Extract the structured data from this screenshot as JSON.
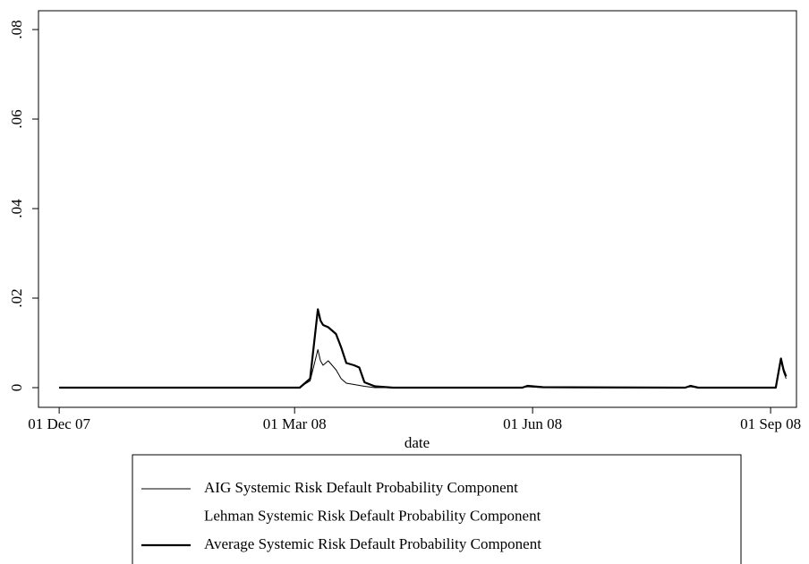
{
  "chart_data": {
    "type": "line",
    "xlabel": "date",
    "x": [
      "2007-12-01",
      "2008-01-15",
      "2008-03-03",
      "2008-03-05",
      "2008-03-07",
      "2008-03-10",
      "2008-03-11",
      "2008-03-12",
      "2008-03-14",
      "2008-03-17",
      "2008-03-19",
      "2008-03-21",
      "2008-03-24",
      "2008-03-26",
      "2008-03-28",
      "2008-04-01",
      "2008-04-08",
      "2008-05-28",
      "2008-05-30",
      "2008-06-05",
      "2008-07-30",
      "2008-08-01",
      "2008-08-04",
      "2008-09-03",
      "2008-09-05",
      "2008-09-06",
      "2008-09-07"
    ],
    "series": [
      {
        "name": "AIG Systemic Risk Default Probability Component",
        "color": "#000000",
        "width": 1,
        "values": [
          0,
          0,
          0,
          0.0008,
          0.0015,
          0.0085,
          0.006,
          0.005,
          0.006,
          0.004,
          0.002,
          0.001,
          0.0007,
          0.0005,
          0.0003,
          0,
          0,
          0,
          0.0002,
          0,
          0,
          0.0002,
          0,
          0,
          0.006,
          0.0035,
          0.002
        ]
      },
      {
        "name": "Lehman Systemic Risk Default Probability Component",
        "color": "#ffffff",
        "width": 1,
        "values": [
          null,
          null,
          null,
          null,
          null,
          null,
          null,
          null,
          null,
          null,
          null,
          null,
          null,
          null,
          null,
          null,
          null,
          null,
          null,
          null,
          null,
          null,
          null,
          null,
          null,
          null,
          null
        ]
      },
      {
        "name": "Average Systemic Risk Default Probability Component",
        "color": "#000000",
        "width": 2.2,
        "values": [
          0,
          0,
          0,
          0.001,
          0.002,
          0.0175,
          0.015,
          0.014,
          0.0135,
          0.012,
          0.009,
          0.0055,
          0.005,
          0.0045,
          0.0012,
          0.0003,
          0,
          0,
          0.0004,
          0.0001,
          0,
          0.0004,
          0,
          0,
          0.0065,
          0.004,
          0.0025
        ]
      }
    ],
    "xlim": [
      "2007-11-23",
      "2008-09-11"
    ],
    "xticks": [
      {
        "value": "2007-12-01",
        "label": "01 Dec 07"
      },
      {
        "value": "2008-03-01",
        "label": "01 Mar 08"
      },
      {
        "value": "2008-06-01",
        "label": "01 Jun 08"
      },
      {
        "value": "2008-09-01",
        "label": "01 Sep 08"
      }
    ],
    "ylim": [
      -0.0044,
      0.0842
    ],
    "yticks": [
      0,
      {
        "value": 0.02,
        "label": ".02"
      },
      {
        "value": 0.04,
        "label": ".04"
      },
      {
        "value": 0.06,
        "label": ".06"
      },
      {
        "value": 0.08,
        "label": ".08"
      }
    ]
  }
}
